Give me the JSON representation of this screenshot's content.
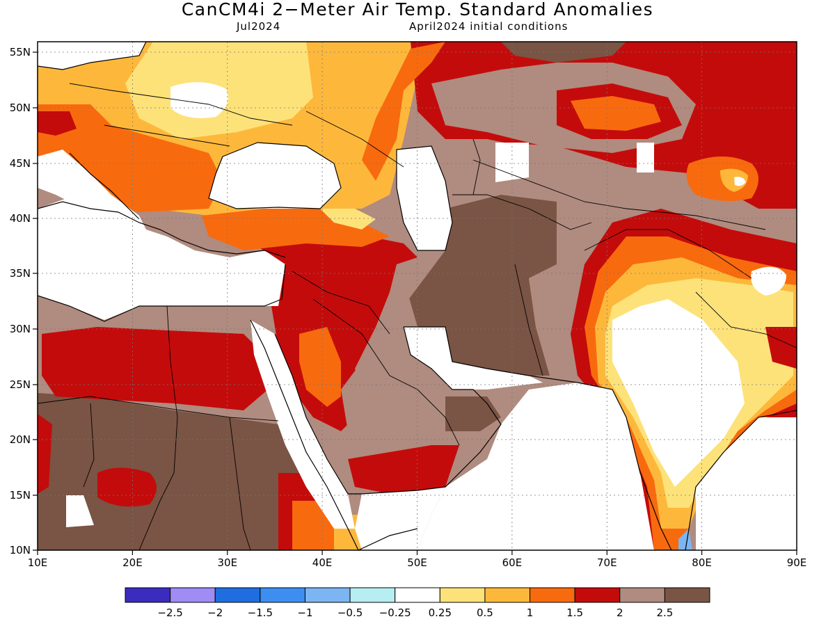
{
  "title": "CanCM4i 2−Meter Air Temp. Standard Anomalies",
  "subtitle_left": "Jul2024",
  "subtitle_right": "April2024 initial conditions",
  "lon_labels": [
    "10E",
    "20E",
    "30E",
    "40E",
    "50E",
    "60E",
    "70E",
    "80E",
    "90E"
  ],
  "lat_labels": [
    "55N",
    "50N",
    "45N",
    "40N",
    "35N",
    "30N",
    "25N",
    "20N",
    "15N",
    "10N"
  ],
  "legend": {
    "colors": [
      "#3b2cbf",
      "#9f8cf5",
      "#1f6ee0",
      "#3d8ef0",
      "#7cb5f2",
      "#b6eef2",
      "#ffffff",
      "#fde27a",
      "#fdb83c",
      "#f86a0e",
      "#c40b0b",
      "#b08b7f",
      "#7a5444"
    ],
    "tick_labels": [
      "−2.5",
      "−2",
      "−1.5",
      "−1",
      "−0.5",
      "−0.25",
      "0.25",
      "0.5",
      "1",
      "1.5",
      "2",
      "2.5"
    ]
  },
  "palette": {
    "c1": "#fde27a",
    "c2": "#fdb83c",
    "c3": "#f86a0e",
    "c4": "#c40b0b",
    "c5": "#b08b7f",
    "c6": "#7a5444",
    "neg": "#7cb5f2"
  }
}
